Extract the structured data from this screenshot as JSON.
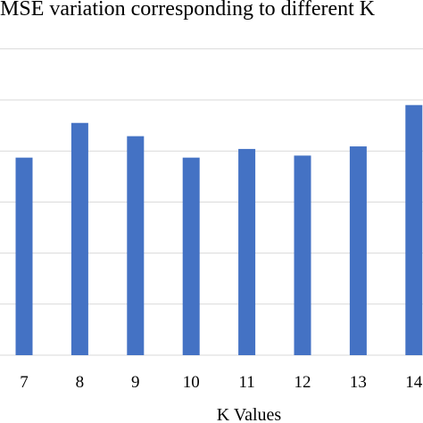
{
  "chart_data": {
    "type": "bar",
    "title": "MSE variation corresponding to different K",
    "xlabel": "K Values",
    "ylabel": "",
    "categories": [
      "7",
      "8",
      "9",
      "10",
      "11",
      "12",
      "13",
      "14"
    ],
    "values": [
      3.87,
      4.55,
      4.29,
      3.87,
      4.04,
      3.91,
      4.09,
      4.9
    ],
    "ylim": [
      0,
      7
    ],
    "grid": true,
    "bar_color": "#4472c4",
    "grid_color": "#d9d9d9",
    "legend": "none"
  }
}
